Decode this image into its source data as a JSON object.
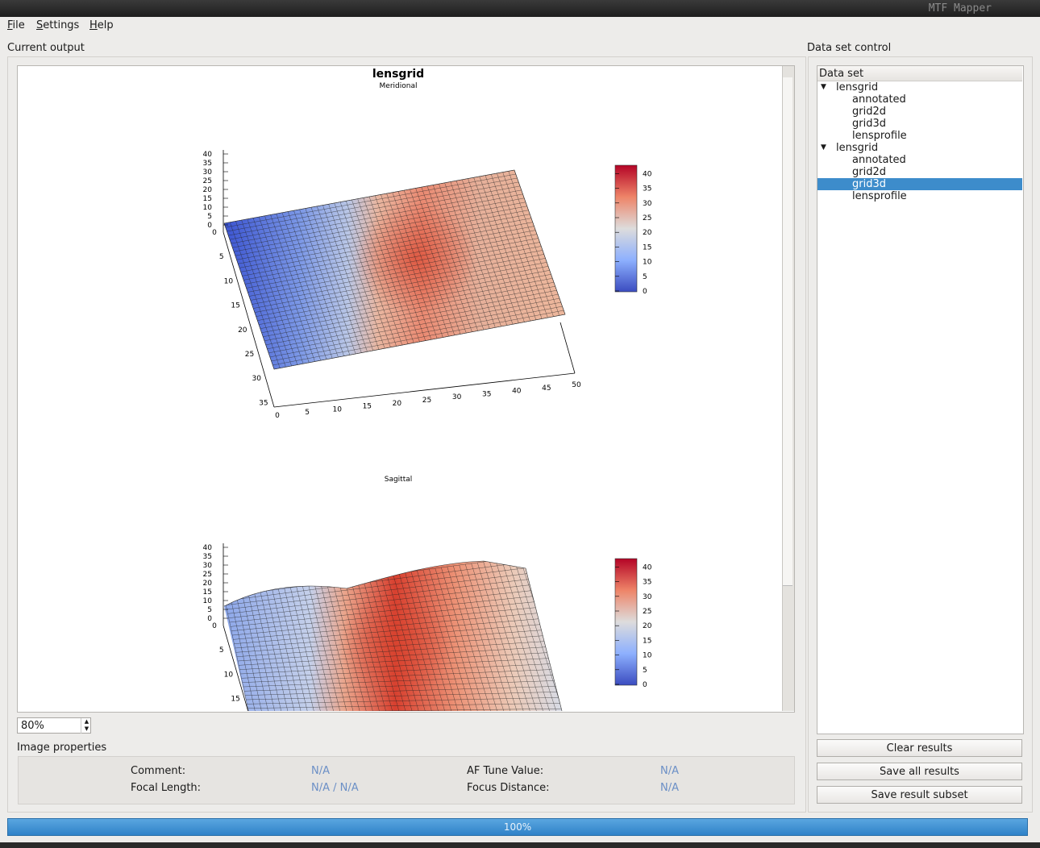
{
  "window": {
    "title": "MTF Mapper"
  },
  "menu": [
    "File",
    "Settings",
    "Help"
  ],
  "output_panel": {
    "label": "Current output",
    "plots": [
      {
        "title": "lensgrid",
        "subtitle": "Meridional",
        "z_ticks": [
          0,
          5,
          10,
          15,
          20,
          25,
          30,
          35,
          40
        ],
        "y_ticks": [
          0,
          5,
          10,
          15,
          20,
          25,
          30,
          35
        ],
        "x_ticks": [
          0,
          5,
          10,
          15,
          20,
          25,
          30,
          35,
          40,
          45,
          50
        ],
        "colorbar_ticks": [
          0,
          5,
          10,
          15,
          20,
          25,
          30,
          35,
          40
        ]
      },
      {
        "subtitle": "Sagittal",
        "z_ticks": [
          0,
          5,
          10,
          15,
          20,
          25,
          30,
          35,
          40
        ],
        "y_ticks": [
          0,
          5,
          10,
          15
        ],
        "colorbar_ticks": [
          0,
          5,
          10,
          15,
          20,
          25,
          30,
          35,
          40
        ]
      }
    ],
    "zoom": "80%"
  },
  "image_properties": {
    "label": "Image properties",
    "rows": [
      [
        "Comment:",
        "N/A",
        "AF Tune Value:",
        "N/A"
      ],
      [
        "Focal Length:",
        "N/A / N/A",
        "Focus Distance:",
        "N/A"
      ]
    ]
  },
  "data_set_control": {
    "label": "Data set control",
    "header": "Data set",
    "tree": [
      {
        "label": "lensgrid",
        "children": [
          "annotated",
          "grid2d",
          "grid3d",
          "lensprofile"
        ]
      },
      {
        "label": "lensgrid",
        "children": [
          "annotated",
          "grid2d",
          "grid3d",
          "lensprofile"
        ]
      }
    ],
    "buttons": [
      "Clear results",
      "Save all results",
      "Save result subset"
    ]
  },
  "progress": "100%"
}
